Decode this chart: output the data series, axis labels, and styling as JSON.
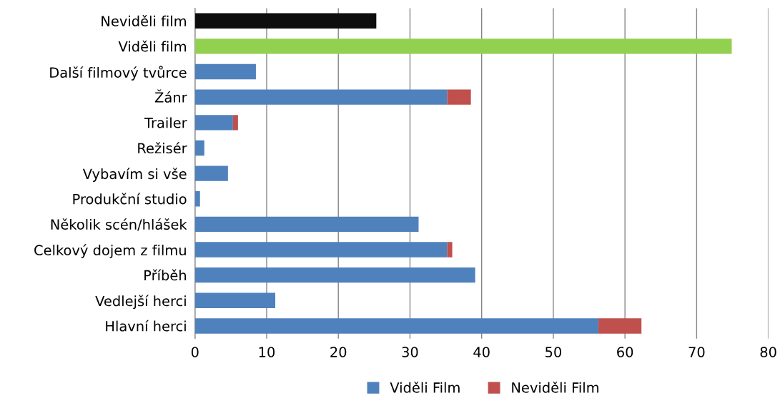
{
  "chart_data": {
    "type": "bar",
    "orientation": "horizontal",
    "stacked": true,
    "categories": [
      "Neviděli film",
      "Viděli film",
      "Další filmový tvůrce",
      "Žánr",
      "Trailer",
      "Režisér",
      "Vybavím si vše",
      "Produkční studio",
      "Několik scén/hlášek",
      "Celkový dojem z filmu",
      "Příběh",
      "Vedlejší herci",
      "Hlavní herci"
    ],
    "series": [
      {
        "name": "Viděli Film",
        "color": "#4f81bd",
        "colors": [
          "#0d0d0d",
          "#92d050",
          "#4f81bd",
          "#4f81bd",
          "#4f81bd",
          "#4f81bd",
          "#4f81bd",
          "#4f81bd",
          "#4f81bd",
          "#4f81bd",
          "#4f81bd",
          "#4f81bd",
          "#4f81bd"
        ],
        "values": [
          25.3,
          74.9,
          8.5,
          35.2,
          5.3,
          1.3,
          4.6,
          0.7,
          31.2,
          35.2,
          39.1,
          11.2,
          56.3
        ]
      },
      {
        "name": "Neviděli Film",
        "color": "#c0504d",
        "values": [
          null,
          null,
          null,
          3.3,
          0.7,
          null,
          null,
          null,
          null,
          0.7,
          null,
          null,
          6.0
        ]
      }
    ],
    "xlim": [
      0,
      80
    ],
    "xticks": [
      0,
      10,
      20,
      30,
      40,
      50,
      60,
      70,
      80
    ],
    "grid": "x",
    "legend": "bottom"
  }
}
